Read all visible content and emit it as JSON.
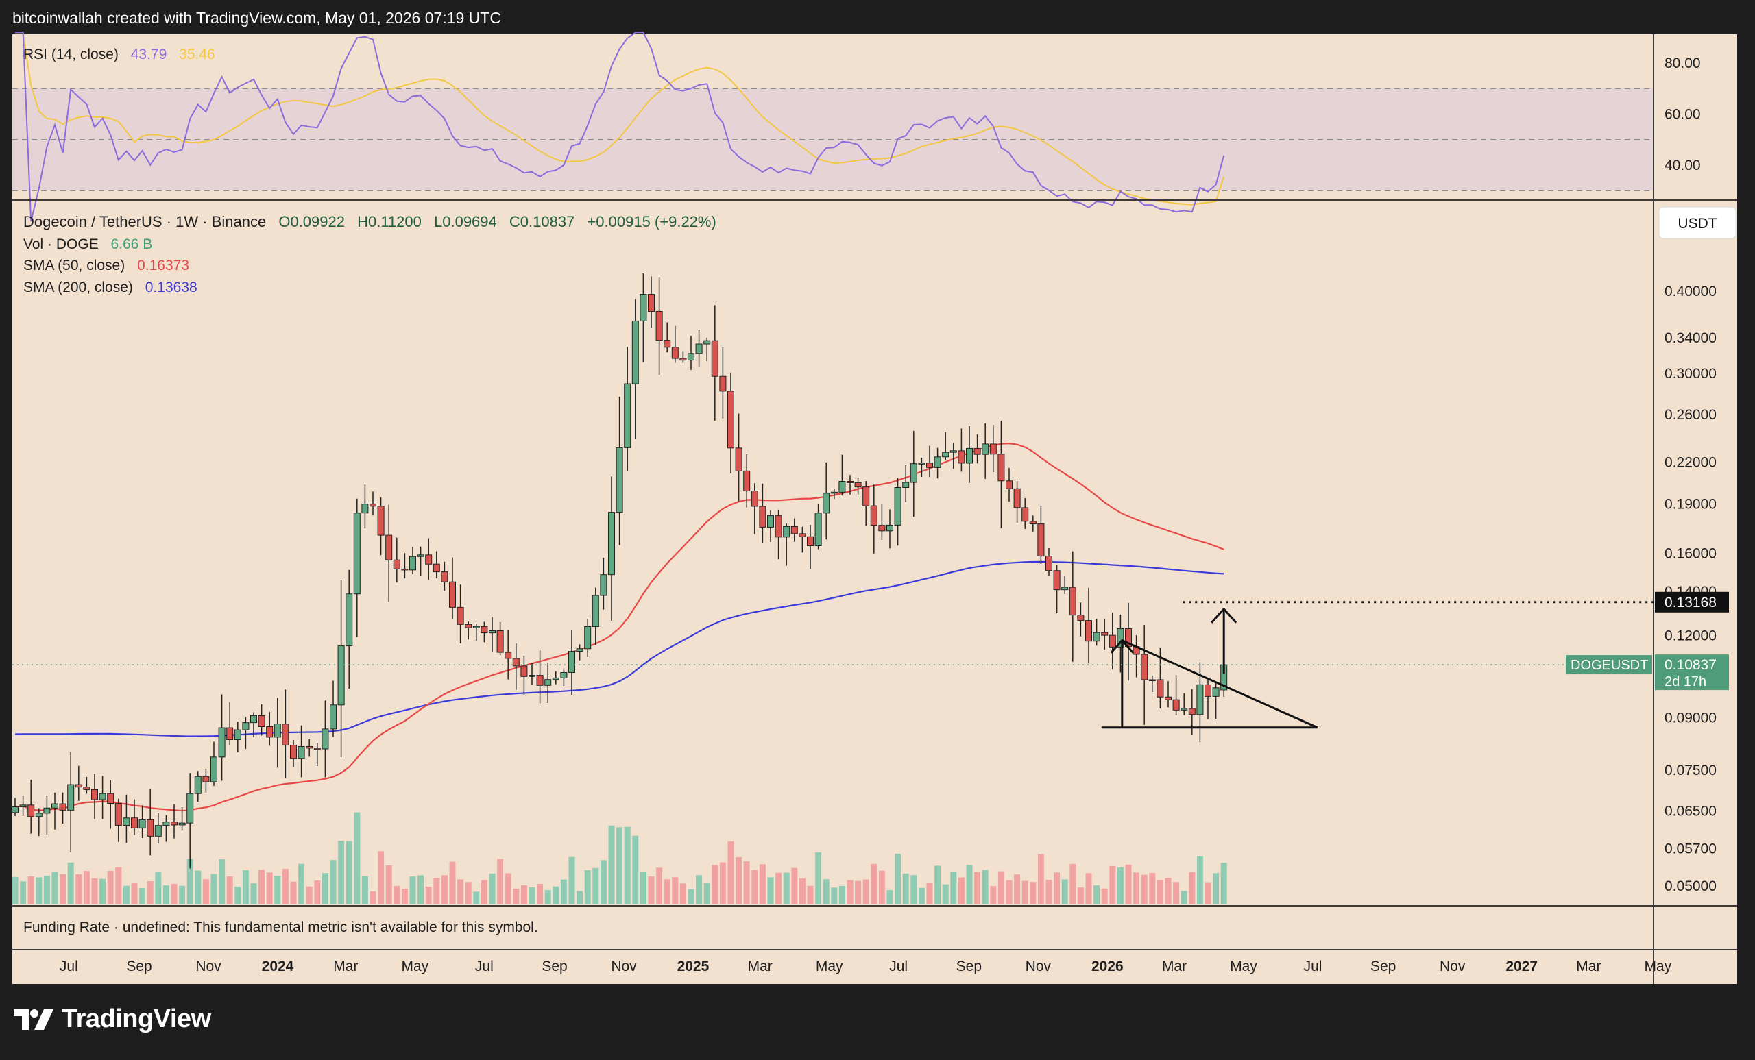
{
  "header": {
    "attribution": "bitcoinwallah created with TradingView.com, May 01, 2026 07:19 UTC"
  },
  "footer": {
    "brand": "TradingView"
  },
  "colors": {
    "background": "#f3e1d0",
    "rsi_band": "#e6d3d6",
    "bull": "#5fa883",
    "bear": "#d9534f",
    "rsi_line": "#8a6cdc",
    "rsi_ma": "#f2c744",
    "sma50": "#e84747",
    "sma200": "#3a3ad9",
    "vol_bull": "#8fcab2",
    "vol_bear": "#f0a3a0"
  },
  "rsi_pane": {
    "legend_label": "RSI (14, close)",
    "rsi_value": "43.79",
    "ma_value": "35.46",
    "axis_labels": [
      "80.00",
      "60.00",
      "40.00"
    ]
  },
  "main_pane": {
    "symbol_title": "Dogecoin / TetherUS · 1W · Binance",
    "ohlc": {
      "o": "O0.09922",
      "h": "H0.11200",
      "l": "L0.09694",
      "c": "C0.10837",
      "chg": "+0.00915 (+9.22%)"
    },
    "vol_label": "Vol · DOGE",
    "vol_value": "6.66 B",
    "sma50_label": "SMA (50, close)",
    "sma50_value": "0.16373",
    "sma200_label": "SMA (200, close)",
    "sma200_value": "0.13638",
    "currency_button": "USDT",
    "price_axis_labels": [
      "0.40000",
      "0.34000",
      "0.30000",
      "0.26000",
      "0.22000",
      "0.19000",
      "0.16000",
      "0.14000",
      "0.12000",
      "0.09000",
      "0.07500",
      "0.06500",
      "0.05700",
      "0.05000"
    ],
    "target_label": "0.13168",
    "current_symbol": "DOGEUSDT",
    "current_price": "0.10837",
    "countdown": "2d 17h"
  },
  "funding_pane": {
    "text": "Funding Rate · undefined: This fundamental metric isn't available for this symbol."
  },
  "time_axis": {
    "labels": [
      "Jul",
      "Sep",
      "Nov",
      "2024",
      "Mar",
      "May",
      "Jul",
      "Sep",
      "Nov",
      "2025",
      "Mar",
      "May",
      "Jul",
      "Sep",
      "Nov",
      "2026",
      "Mar",
      "May",
      "Jul",
      "Sep",
      "Nov",
      "2027",
      "Mar",
      "May"
    ],
    "bold": [
      "2024",
      "2025",
      "2026",
      "2027"
    ]
  },
  "chart_data": {
    "type": "candlestick",
    "title": "Dogecoin / TetherUS · 1W · Binance",
    "y_scale": "log",
    "ylim": [
      0.045,
      0.5
    ],
    "approx_monthly_close": [
      {
        "t": "2023-06",
        "c": 0.066
      },
      {
        "t": "2023-07",
        "c": 0.071
      },
      {
        "t": "2023-08",
        "c": 0.064
      },
      {
        "t": "2023-09",
        "c": 0.061
      },
      {
        "t": "2023-10",
        "c": 0.066
      },
      {
        "t": "2023-11",
        "c": 0.085
      },
      {
        "t": "2023-12",
        "c": 0.09
      },
      {
        "t": "2024-01",
        "c": 0.08
      },
      {
        "t": "2024-02",
        "c": 0.085
      },
      {
        "t": "2024-03",
        "c": 0.2
      },
      {
        "t": "2024-04",
        "c": 0.15
      },
      {
        "t": "2024-05",
        "c": 0.16
      },
      {
        "t": "2024-06",
        "c": 0.125
      },
      {
        "t": "2024-07",
        "c": 0.115
      },
      {
        "t": "2024-08",
        "c": 0.1
      },
      {
        "t": "2024-09",
        "c": 0.11
      },
      {
        "t": "2024-10",
        "c": 0.145
      },
      {
        "t": "2024-11",
        "c": 0.4
      },
      {
        "t": "2024-12",
        "c": 0.32
      },
      {
        "t": "2025-01",
        "c": 0.33
      },
      {
        "t": "2025-02",
        "c": 0.2
      },
      {
        "t": "2025-03",
        "c": 0.17
      },
      {
        "t": "2025-04",
        "c": 0.17
      },
      {
        "t": "2025-05",
        "c": 0.22
      },
      {
        "t": "2025-06",
        "c": 0.165
      },
      {
        "t": "2025-07",
        "c": 0.23
      },
      {
        "t": "2025-08",
        "c": 0.22
      },
      {
        "t": "2025-09",
        "c": 0.24
      },
      {
        "t": "2025-10",
        "c": 0.19
      },
      {
        "t": "2025-11",
        "c": 0.15
      },
      {
        "t": "2025-12",
        "c": 0.122
      },
      {
        "t": "2026-01",
        "c": 0.12
      },
      {
        "t": "2026-02",
        "c": 0.095
      },
      {
        "t": "2026-03",
        "c": 0.094
      },
      {
        "t": "2026-04",
        "c": 0.108
      }
    ],
    "current": {
      "o": 0.09922,
      "h": 0.112,
      "l": 0.09694,
      "c": 0.10837
    },
    "sma50_last": 0.16373,
    "sma200_last": 0.13638,
    "target": 0.13168,
    "rsi": {
      "last": 43.79,
      "ma_last": 35.46,
      "levels": [
        70,
        50,
        30
      ]
    }
  }
}
